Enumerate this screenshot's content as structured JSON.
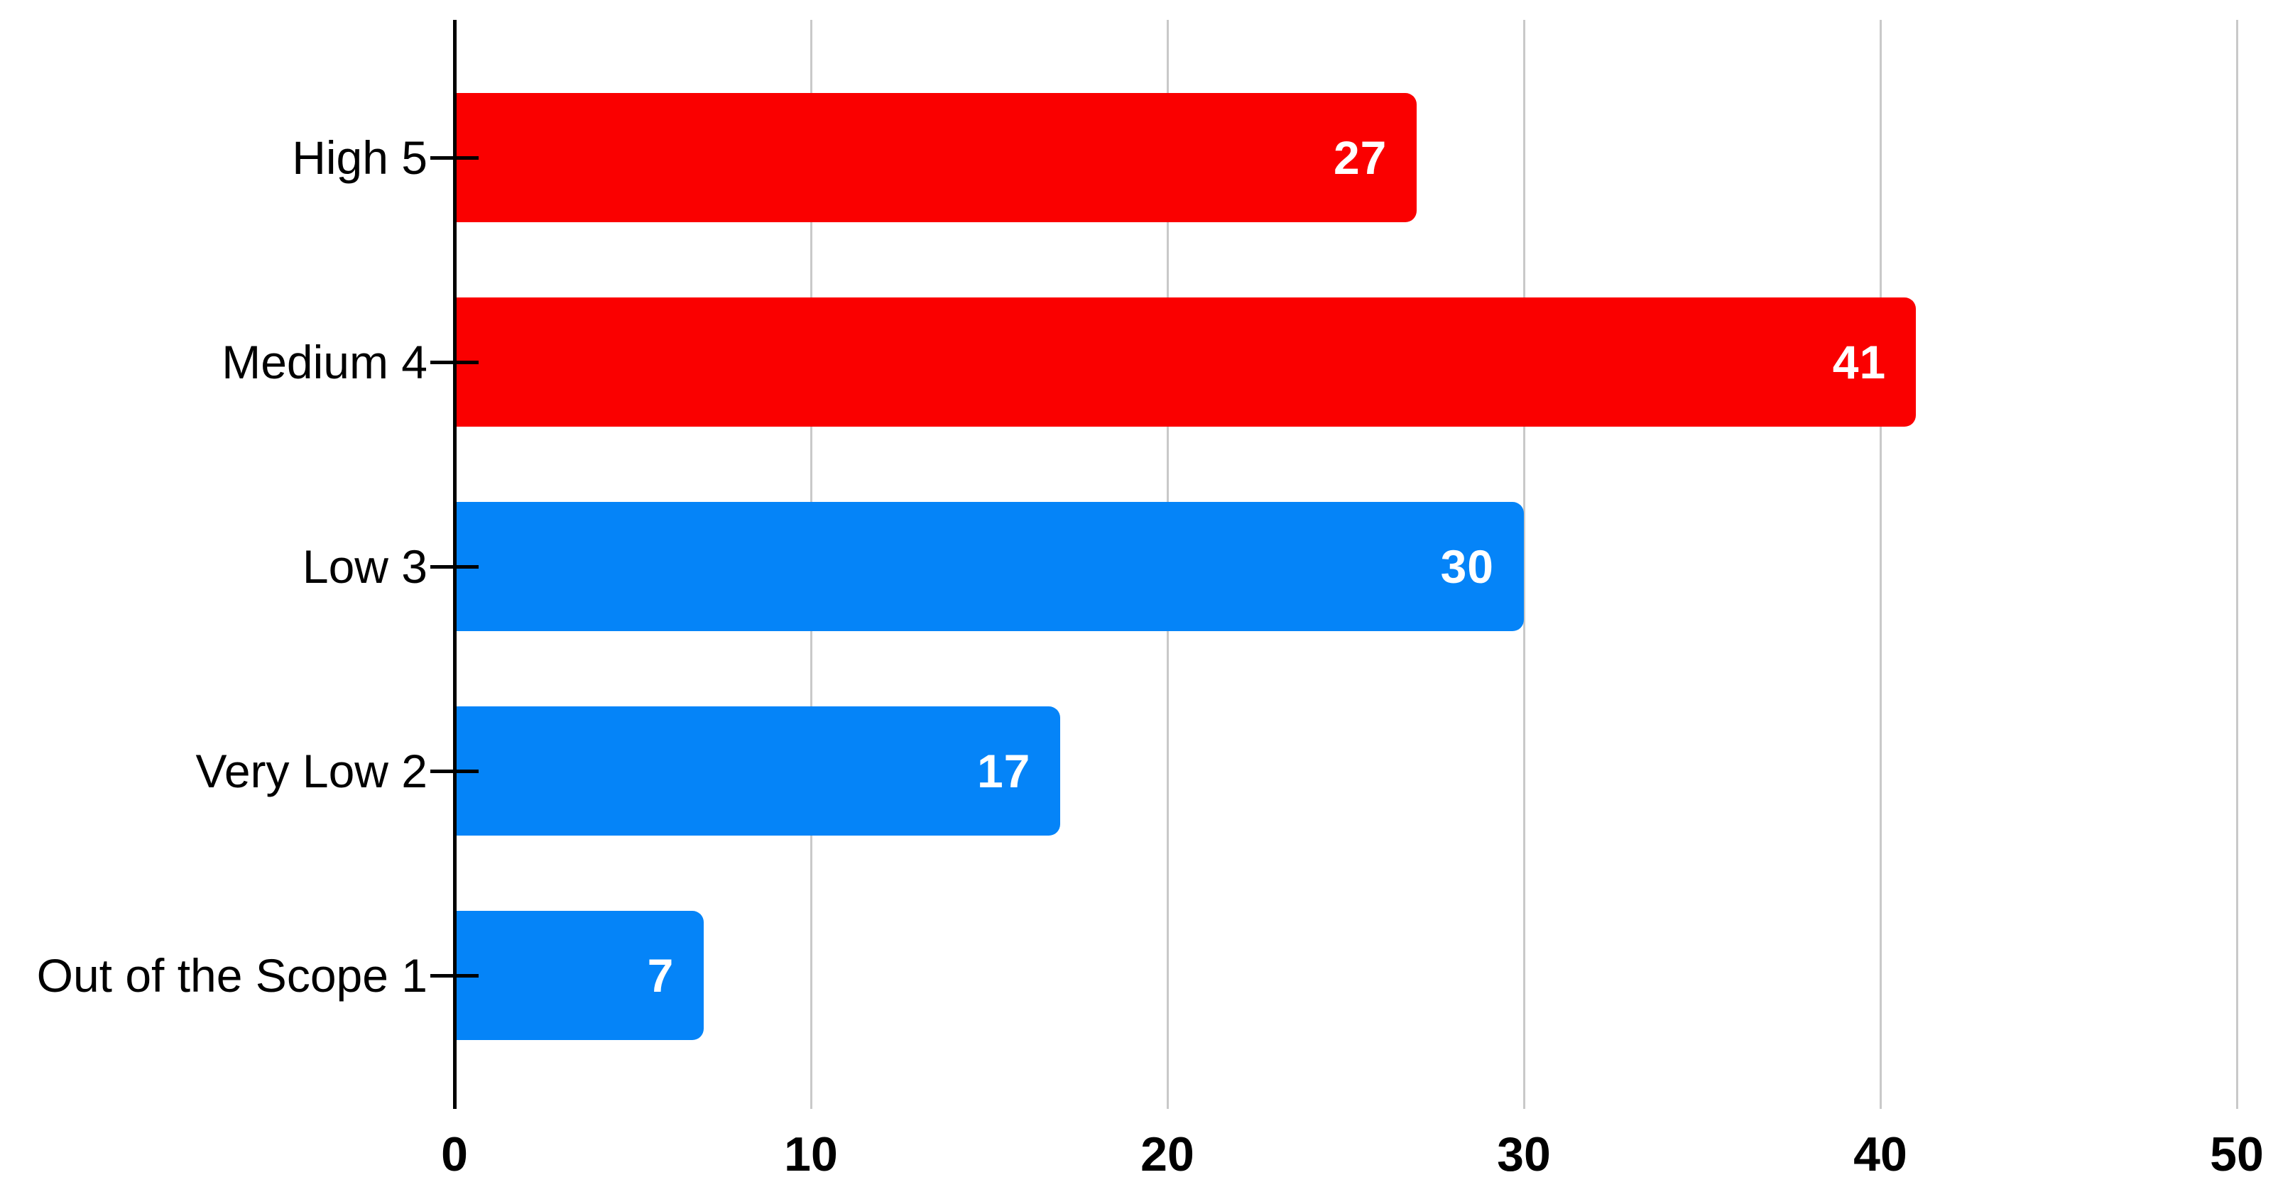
{
  "chart_data": {
    "type": "bar",
    "orientation": "horizontal",
    "title": "",
    "xlabel": "",
    "ylabel": "",
    "categories": [
      "High 5",
      "Medium 4",
      "Low 3",
      "Very Low 2",
      "Out of the Scope 1"
    ],
    "values": [
      27,
      41,
      30,
      17,
      7
    ],
    "value_labels": [
      "27",
      "41",
      "30",
      "17",
      "7"
    ],
    "bar_colors": [
      "#fa0000",
      "#fa0000",
      "#0584f8",
      "#0584f8",
      "#0584f8"
    ],
    "value_label_color": "#ffffff",
    "x_ticks": [
      0,
      10,
      20,
      30,
      40,
      50
    ],
    "x_tick_labels": [
      "0",
      "10",
      "20",
      "30",
      "40",
      "50"
    ],
    "xlim": [
      0,
      50
    ],
    "grid": true,
    "legend": false,
    "colors": {
      "red_bar": "#fa0000",
      "blue_bar": "#0584f8",
      "gridline": "#c9c9c9",
      "axis": "#000000",
      "background": "#ffffff",
      "text": "#000000"
    }
  }
}
